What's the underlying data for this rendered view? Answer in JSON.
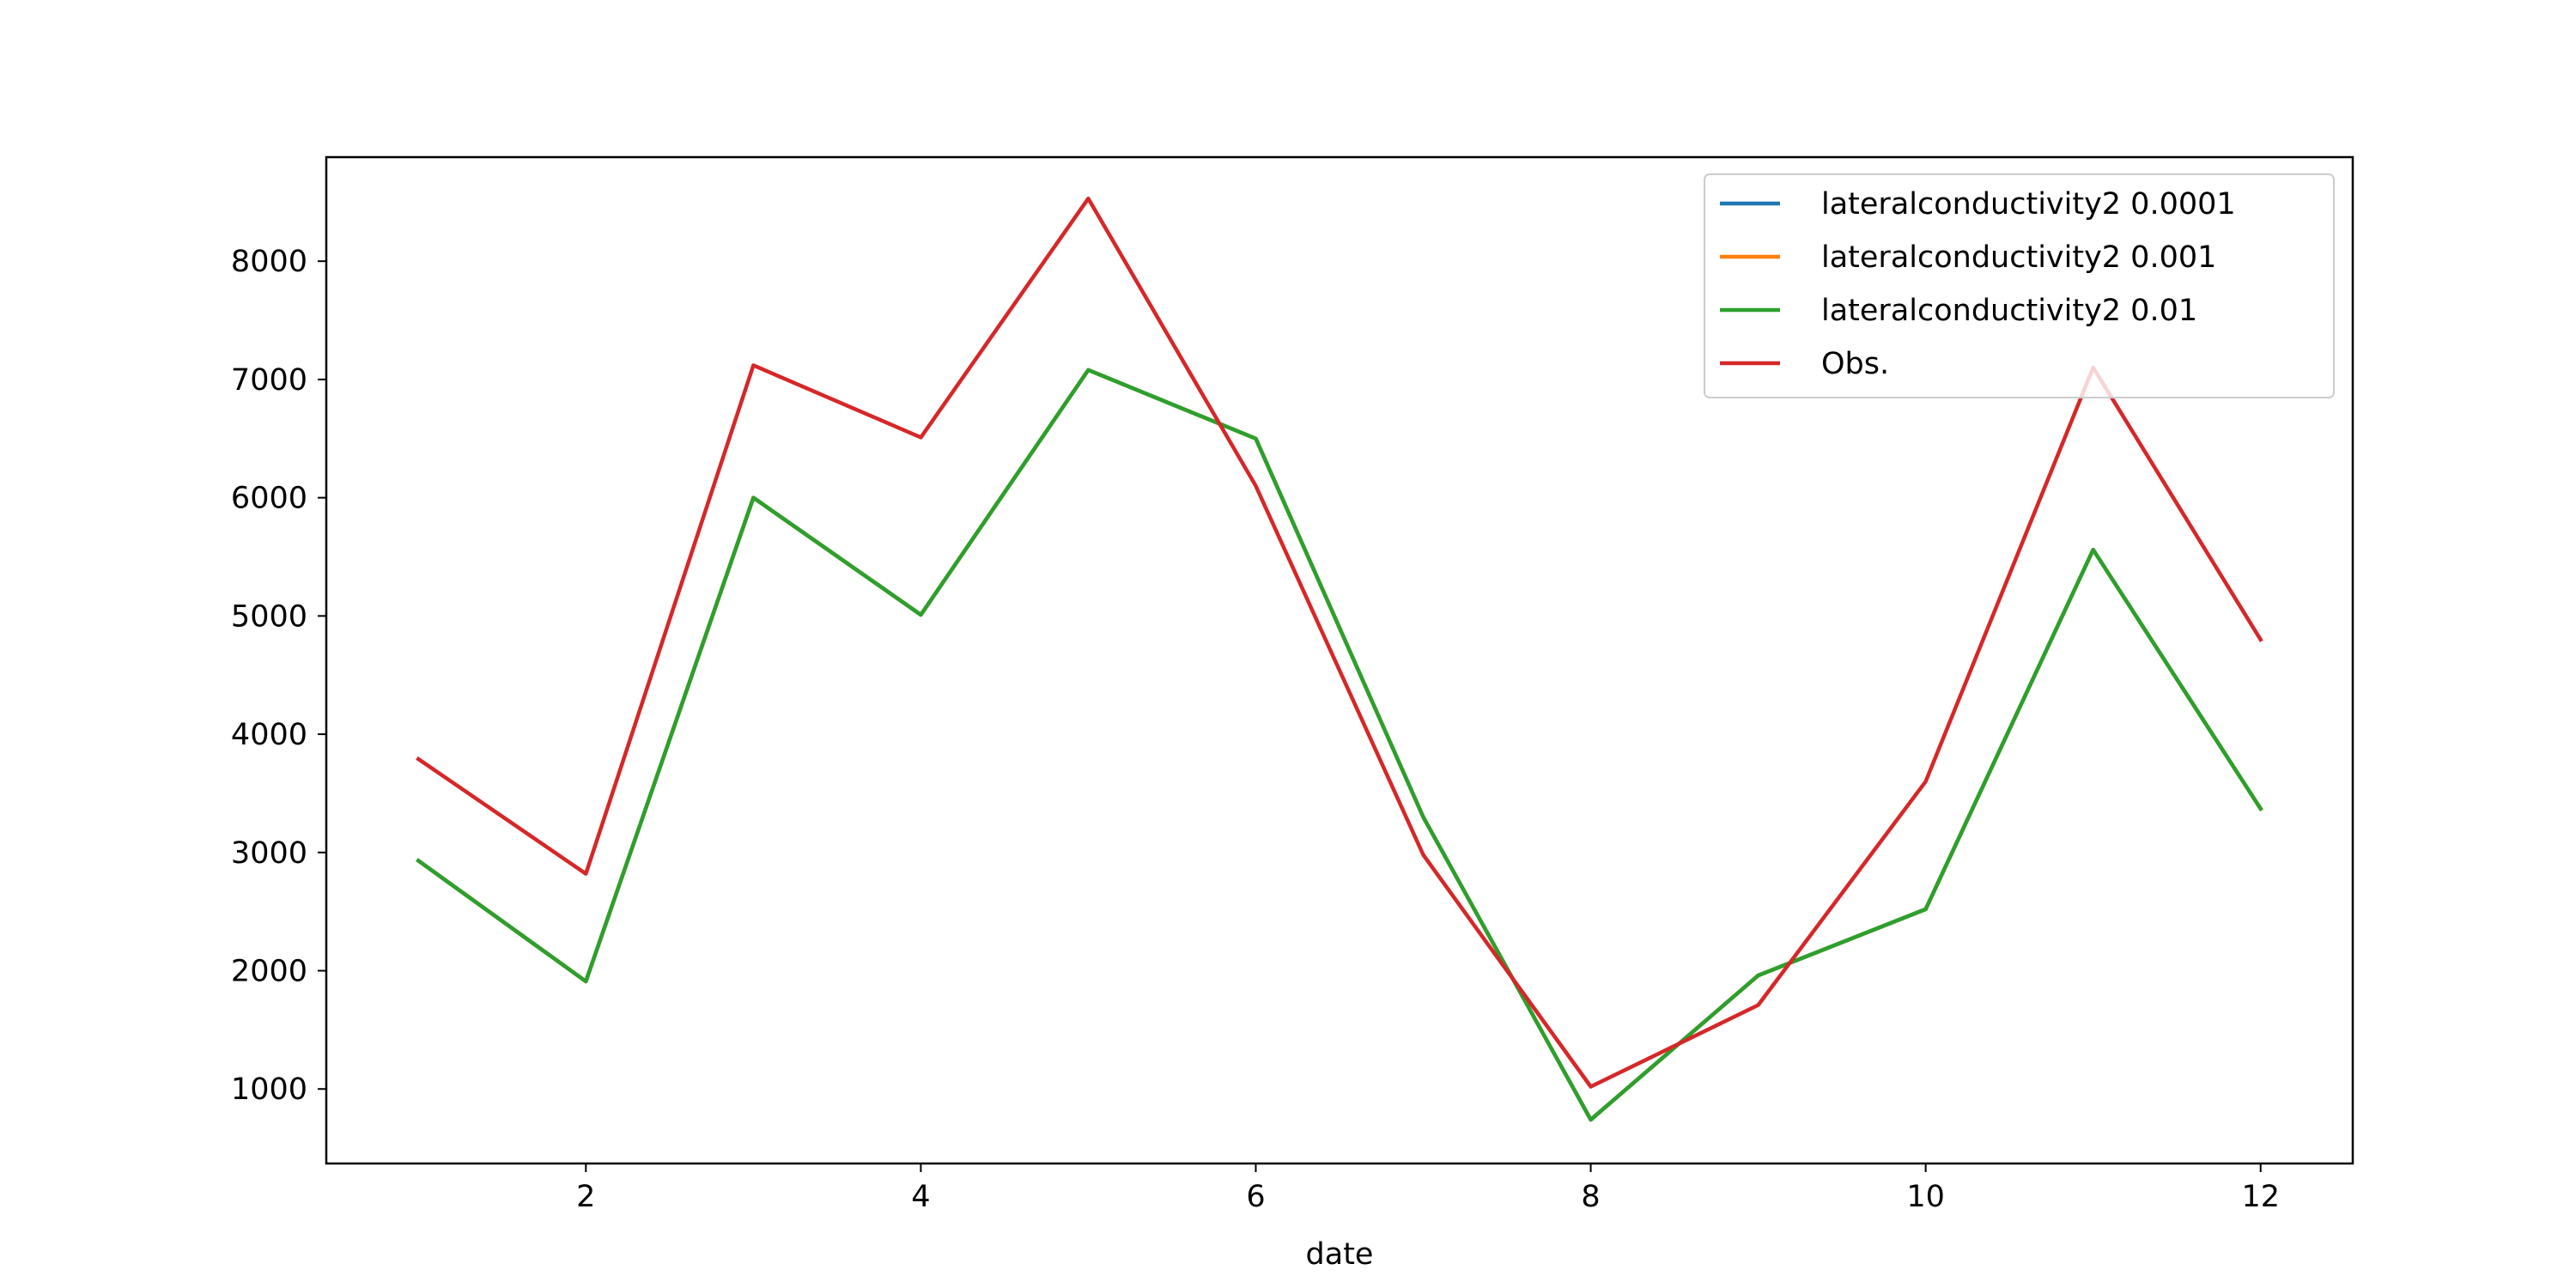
{
  "chart_data": {
    "type": "line",
    "title": "",
    "xlabel": "date",
    "ylabel": "",
    "xlim": [
      0.45,
      12.55
    ],
    "ylim": [
      370,
      8880
    ],
    "xticks": [
      2,
      4,
      6,
      8,
      10,
      12
    ],
    "yticks": [
      1000,
      2000,
      3000,
      4000,
      5000,
      6000,
      7000,
      8000
    ],
    "grid": false,
    "legend_position": "top-right",
    "x": [
      1,
      2,
      3,
      4,
      5,
      6,
      7,
      8,
      9,
      10,
      11,
      12
    ],
    "series": [
      {
        "name": "lateralconductivity2 0.0001",
        "color": "#1f77b4",
        "values": [
          2930,
          1910,
          6000,
          5010,
          7080,
          6500,
          3300,
          740,
          1960,
          2520,
          5560,
          3370
        ]
      },
      {
        "name": "lateralconductivity2 0.001",
        "color": "#ff7f0e",
        "values": [
          2930,
          1910,
          6000,
          5010,
          7080,
          6500,
          3300,
          740,
          1960,
          2520,
          5560,
          3370
        ]
      },
      {
        "name": "lateralconductivity2 0.01",
        "color": "#2ca02c",
        "values": [
          2930,
          1910,
          6000,
          5010,
          7080,
          6500,
          3300,
          740,
          1960,
          2520,
          5560,
          3370
        ]
      },
      {
        "name": "Obs.",
        "color": "#d62728",
        "values": [
          3790,
          2820,
          7120,
          6510,
          8530,
          6100,
          2980,
          1020,
          1710,
          3600,
          7100,
          4800
        ]
      }
    ]
  }
}
